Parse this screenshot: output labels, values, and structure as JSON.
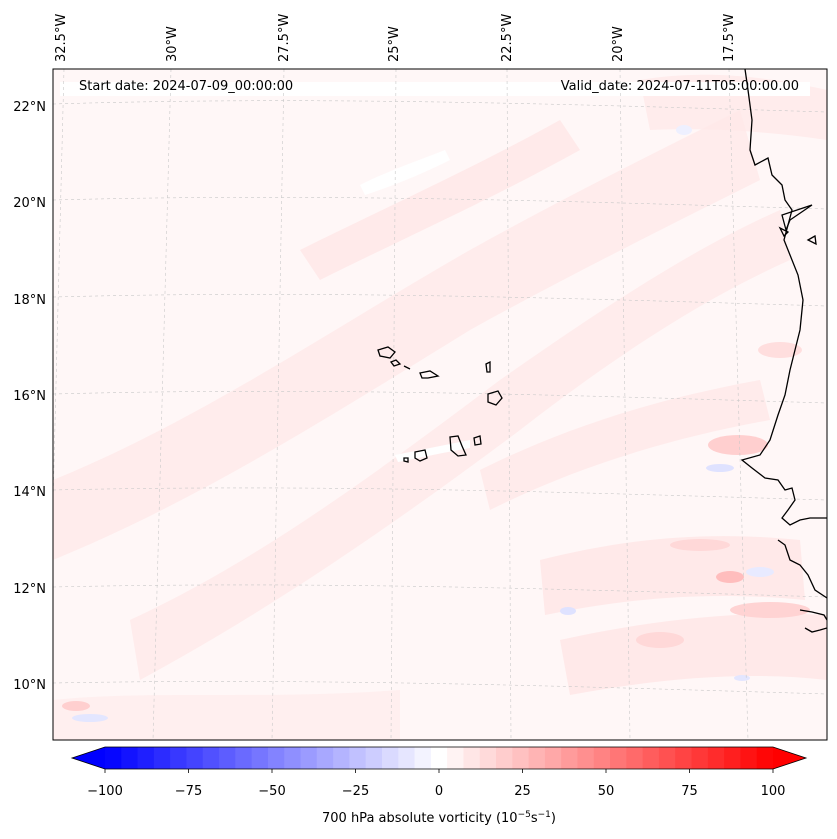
{
  "header": {
    "start_date": "Start date: 2024-07-09_00:00:00",
    "valid_date": "Valid_date: 2024-07-11T05:00:00.00"
  },
  "longitude_ticks": [
    "32.5°W",
    "30°W",
    "27.5°W",
    "25°W",
    "22.5°W",
    "20°W",
    "17.5°W"
  ],
  "latitude_ticks": [
    "22°N",
    "20°N",
    "18°N",
    "16°N",
    "14°N",
    "12°N",
    "10°N"
  ],
  "colorbar": {
    "ticks": [
      "−100",
      "−75",
      "−50",
      "−25",
      "0",
      "25",
      "50",
      "75",
      "100"
    ],
    "min": -100,
    "max": 100,
    "levels": 41,
    "label_prefix": "700 hPa absolute vorticity (10",
    "label_exp1": "−5",
    "label_mid": "s",
    "label_exp2": "−1",
    "label_suffix": ")"
  },
  "colors": {
    "negative_end": "#0000ff",
    "positive_end": "#ff0000",
    "neutral": "#ffffff",
    "background_field": "#fff7f7"
  }
}
